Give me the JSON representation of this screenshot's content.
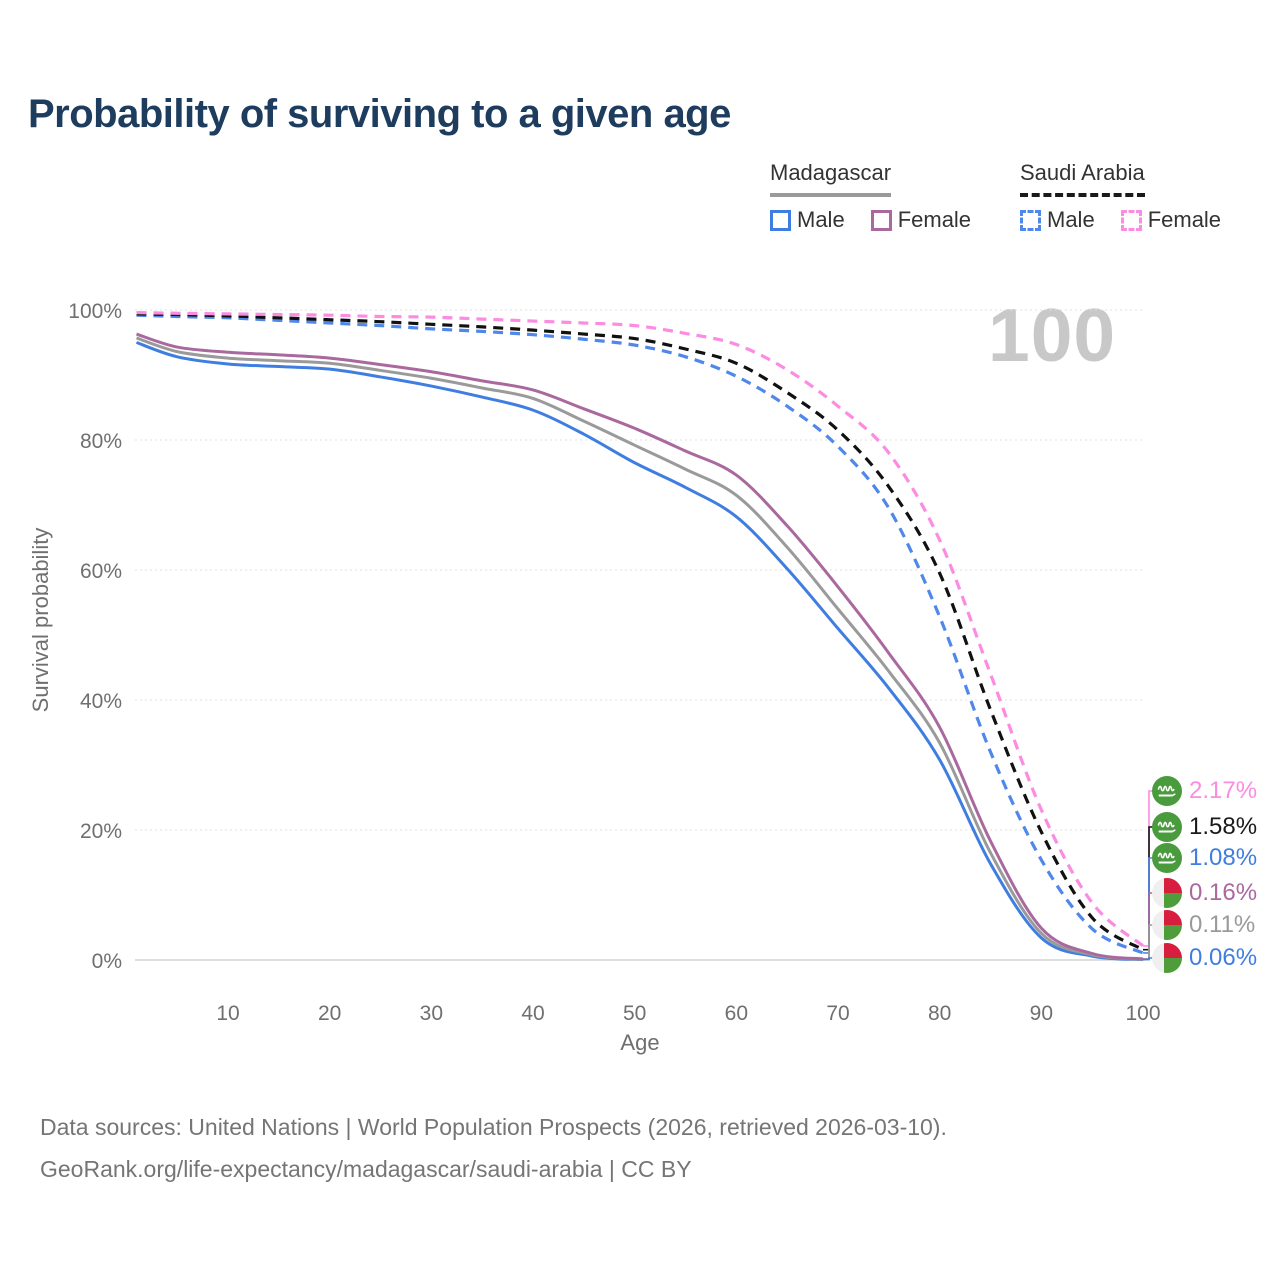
{
  "title": "Probability of surviving to a given age",
  "watermark": "100",
  "legend": {
    "groups": [
      {
        "label": "Madagascar",
        "underline_color": "#9a9a9a",
        "underline_style": "solid",
        "items": [
          {
            "label": "Male",
            "color": "#3f7ee0",
            "dashed": false
          },
          {
            "label": "Female",
            "color": "#a9699e",
            "dashed": false
          }
        ]
      },
      {
        "label": "Saudi Arabia",
        "underline_color": "#1a1a1a",
        "underline_style": "dashed",
        "items": [
          {
            "label": "Male",
            "color": "#4f88ea",
            "dashed": true
          },
          {
            "label": "Female",
            "color": "#fb8ce2",
            "dashed": true
          }
        ]
      }
    ]
  },
  "chart_data": {
    "type": "line",
    "title": "Probability of surviving to a given age",
    "xlabel": "Age",
    "ylabel": "Survival probability",
    "xlim": [
      1,
      100
    ],
    "ylim": [
      0,
      100
    ],
    "grid": true,
    "x_ticks": [
      10,
      20,
      30,
      40,
      50,
      60,
      70,
      80,
      90,
      100
    ],
    "y_ticks": [
      0,
      20,
      40,
      60,
      80,
      100
    ],
    "y_tick_labels": [
      "0%",
      "20%",
      "40%",
      "60%",
      "80%",
      "100%"
    ],
    "x": [
      1,
      5,
      10,
      15,
      20,
      25,
      30,
      35,
      40,
      45,
      50,
      55,
      60,
      65,
      70,
      75,
      80,
      85,
      90,
      95,
      100
    ],
    "series": [
      {
        "name": "madagascar_male",
        "label": "Madagascar Male",
        "country": "Madagascar",
        "sex": "Male",
        "color": "#3f7ee0",
        "dashed": false,
        "values": [
          95.0,
          92.8,
          91.7,
          91.3,
          90.9,
          89.7,
          88.3,
          86.6,
          84.6,
          80.9,
          76.5,
          72.7,
          68.2,
          60.2,
          51.0,
          41.8,
          30.8,
          14.8,
          3.4,
          0.6,
          0.06
        ],
        "end_value_pct": 0.06
      },
      {
        "name": "madagascar_both",
        "label": "Madagascar Both sexes",
        "country": "Madagascar",
        "sex": "Both",
        "color": "#9a9a9a",
        "dashed": false,
        "values": [
          95.7,
          93.6,
          92.6,
          92.2,
          91.8,
          90.7,
          89.5,
          88.0,
          86.4,
          82.9,
          79.2,
          75.5,
          71.5,
          63.5,
          54.0,
          44.4,
          33.4,
          16.5,
          4.1,
          0.8,
          0.11
        ],
        "end_value_pct": 0.11
      },
      {
        "name": "madagascar_female",
        "label": "Madagascar Female",
        "country": "Madagascar",
        "sex": "Female",
        "color": "#a9699e",
        "dashed": false,
        "values": [
          96.3,
          94.3,
          93.5,
          93.1,
          92.6,
          91.6,
          90.5,
          89.1,
          87.7,
          84.8,
          81.8,
          78.3,
          74.6,
          66.8,
          57.4,
          47.2,
          35.8,
          18.3,
          4.9,
          1.0,
          0.16
        ],
        "end_value_pct": 0.16
      },
      {
        "name": "saudi_male",
        "label": "Saudi Arabia Male",
        "country": "Saudi Arabia",
        "sex": "Male",
        "color": "#4f88ea",
        "dashed": true,
        "values": [
          99.2,
          99.0,
          98.8,
          98.4,
          98.0,
          97.6,
          97.1,
          96.7,
          96.2,
          95.5,
          94.6,
          92.8,
          89.8,
          85.2,
          79.0,
          69.5,
          52.8,
          32.0,
          15.4,
          4.8,
          1.08
        ],
        "end_value_pct": 1.08
      },
      {
        "name": "saudi_both",
        "label": "Saudi Arabia Both sexes",
        "country": "Saudi Arabia",
        "sex": "Both",
        "color": "#111111",
        "dashed": true,
        "values": [
          99.4,
          99.3,
          99.1,
          98.8,
          98.5,
          98.2,
          97.8,
          97.4,
          96.9,
          96.3,
          95.6,
          94.0,
          91.8,
          87.3,
          81.5,
          72.8,
          59.5,
          38.5,
          19.7,
          6.5,
          1.58
        ],
        "end_value_pct": 1.58
      },
      {
        "name": "saudi_female",
        "label": "Saudi Arabia Female",
        "country": "Saudi Arabia",
        "sex": "Female",
        "color": "#fb8ce2",
        "dashed": true,
        "values": [
          99.6,
          99.5,
          99.4,
          99.3,
          99.2,
          99.0,
          98.9,
          98.6,
          98.3,
          98.0,
          97.6,
          96.4,
          94.7,
          90.8,
          85.2,
          78.0,
          64.6,
          44.0,
          23.1,
          8.8,
          2.17
        ],
        "end_value_pct": 2.17
      }
    ],
    "legend_position": "top-right"
  },
  "end_labels": [
    {
      "text": "2.17%",
      "color": "#fb8ce2",
      "flag": "sa",
      "series": "saudi_female"
    },
    {
      "text": "1.58%",
      "color": "#1a1a1a",
      "flag": "sa",
      "series": "saudi_both"
    },
    {
      "text": "1.08%",
      "color": "#3f7ee0",
      "flag": "sa",
      "series": "saudi_male"
    },
    {
      "text": "0.16%",
      "color": "#a9699e",
      "flag": "mg",
      "series": "madagascar_female"
    },
    {
      "text": "0.11%",
      "color": "#9a9a9a",
      "flag": "mg",
      "series": "madagascar_both"
    },
    {
      "text": "0.06%",
      "color": "#3f7ee0",
      "flag": "mg",
      "series": "madagascar_male"
    }
  ],
  "footer": {
    "line1": "Data sources: United Nations | World Population Prospects (2026, retrieved 2026-03-10).",
    "line2": "GeoRank.org/life-expectancy/madagascar/saudi-arabia | CC BY"
  }
}
